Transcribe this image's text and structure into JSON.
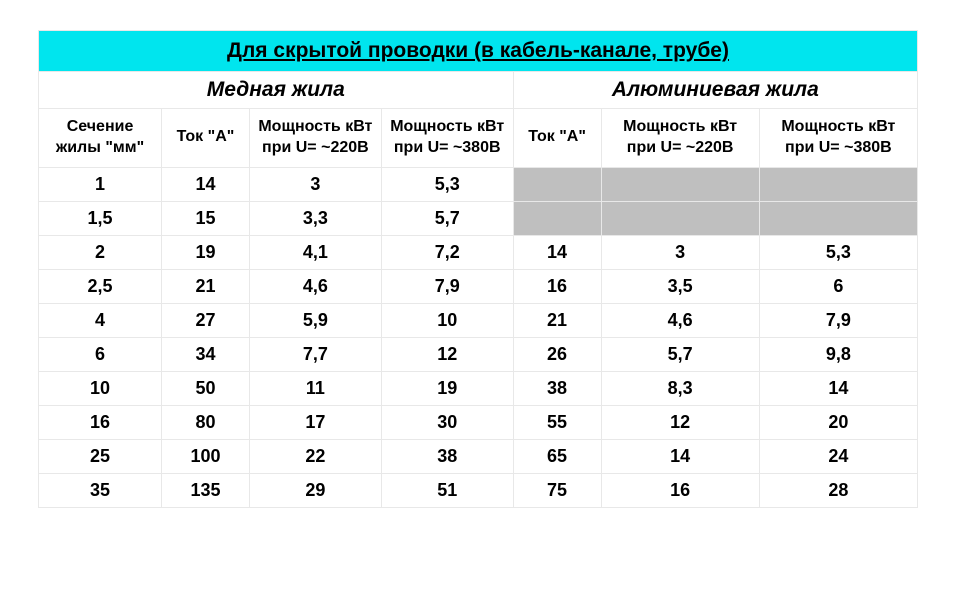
{
  "title": "Для скрытой проводки (в кабель-канале, трубе)",
  "group_cu": "Медная жила",
  "group_al": "Алюминиевая жила",
  "headers": {
    "section": "Сечение жилы \"мм\"",
    "cu_current": "Ток \"А\"",
    "cu_p220": "Мощность кВт при U= ~220В",
    "cu_p380": "Мощность кВт при U= ~380В",
    "al_current": "Ток \"А\"",
    "al_p220": "Мощность кВт при U= ~220В",
    "al_p380": "Мощность кВт при U= ~380В"
  },
  "rows": [
    {
      "sec": "1",
      "cu_a": "14",
      "cu_220": "3",
      "cu_380": "5,3",
      "al_a": "",
      "al_220": "",
      "al_380": "",
      "al_empty": true
    },
    {
      "sec": "1,5",
      "cu_a": "15",
      "cu_220": "3,3",
      "cu_380": "5,7",
      "al_a": "",
      "al_220": "",
      "al_380": "",
      "al_empty": true
    },
    {
      "sec": "2",
      "cu_a": "19",
      "cu_220": "4,1",
      "cu_380": "7,2",
      "al_a": "14",
      "al_220": "3",
      "al_380": "5,3",
      "al_empty": false
    },
    {
      "sec": "2,5",
      "cu_a": "21",
      "cu_220": "4,6",
      "cu_380": "7,9",
      "al_a": "16",
      "al_220": "3,5",
      "al_380": "6",
      "al_empty": false
    },
    {
      "sec": "4",
      "cu_a": "27",
      "cu_220": "5,9",
      "cu_380": "10",
      "al_a": "21",
      "al_220": "4,6",
      "al_380": "7,9",
      "al_empty": false
    },
    {
      "sec": "6",
      "cu_a": "34",
      "cu_220": "7,7",
      "cu_380": "12",
      "al_a": "26",
      "al_220": "5,7",
      "al_380": "9,8",
      "al_empty": false
    },
    {
      "sec": "10",
      "cu_a": "50",
      "cu_220": "11",
      "cu_380": "19",
      "al_a": "38",
      "al_220": "8,3",
      "al_380": "14",
      "al_empty": false
    },
    {
      "sec": "16",
      "cu_a": "80",
      "cu_220": "17",
      "cu_380": "30",
      "al_a": "55",
      "al_220": "12",
      "al_380": "20",
      "al_empty": false
    },
    {
      "sec": "25",
      "cu_a": "100",
      "cu_220": "22",
      "cu_380": "38",
      "al_a": "65",
      "al_220": "14",
      "al_380": "24",
      "al_empty": false
    },
    {
      "sec": "35",
      "cu_a": "135",
      "cu_220": "29",
      "cu_380": "51",
      "al_a": "75",
      "al_220": "16",
      "al_380": "28",
      "al_empty": false
    }
  ],
  "style": {
    "title_bg": "#00e5ee",
    "border_color": "#e8e8e8",
    "empty_bg": "#bfbfbf",
    "text_color": "#000000",
    "font_family": "Arial",
    "title_fontsize": 21,
    "header_fontsize": 16,
    "cell_fontsize": 18
  }
}
